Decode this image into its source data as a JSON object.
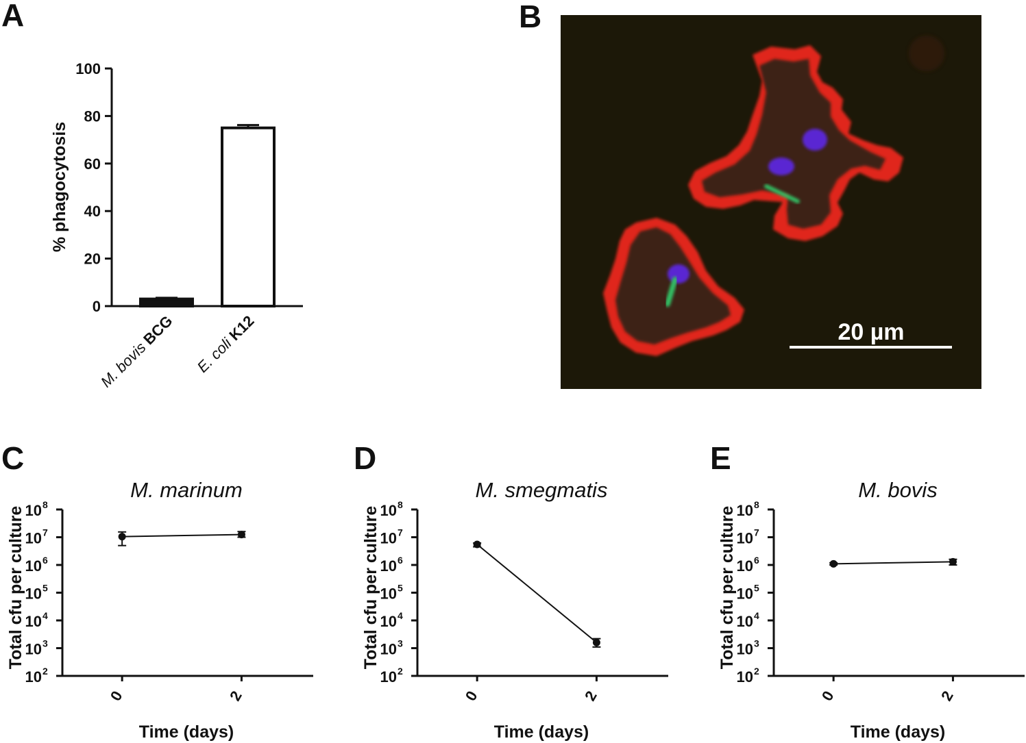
{
  "panels": {
    "A": "A",
    "B": "B",
    "C": "C",
    "D": "D",
    "E": "E"
  },
  "micrograph": {
    "scale_bar_label": "20 µm",
    "colors": {
      "background": "#1c1808",
      "membrane": "#e0281e",
      "cytoplasm": "#3c2414",
      "nucleus": "#5a28d2",
      "bacteria": "#32be64"
    }
  },
  "chart_data": [
    {
      "type": "bar",
      "panel": "A",
      "categories": [
        {
          "italic": "M. bovis",
          "bold": "BCG"
        },
        {
          "italic": "E. coli",
          "bold": "K12"
        }
      ],
      "values": [
        3,
        75
      ],
      "errors": [
        0.5,
        1.2
      ],
      "bar_fill": [
        "#111111",
        "#ffffff"
      ],
      "title": "",
      "xlabel": "",
      "ylabel": "% phagocytosis",
      "ylim": [
        0,
        100
      ],
      "yticks": [
        0,
        20,
        40,
        60,
        80,
        100
      ],
      "grid": false
    },
    {
      "type": "line",
      "panel": "C",
      "title": "M. marinum",
      "xlabel": "Time (days)",
      "ylabel": "Total cfu per culture",
      "yscale": "log",
      "ylim": [
        100,
        100000000
      ],
      "yticks_exp": [
        2,
        3,
        4,
        5,
        6,
        7,
        8
      ],
      "xticks": [
        0,
        2
      ],
      "xlim": [
        -1,
        3.2
      ],
      "x": [
        0,
        2
      ],
      "y": [
        10500000,
        12500000
      ],
      "y_err_low": [
        5000000,
        10000000
      ],
      "y_err_high": [
        15500000,
        16000000
      ],
      "grid": false
    },
    {
      "type": "line",
      "panel": "D",
      "title": "M. smegmatis",
      "xlabel": "Time (days)",
      "ylabel": "Total cfu per culture",
      "yscale": "log",
      "ylim": [
        100,
        100000000
      ],
      "yticks_exp": [
        2,
        3,
        4,
        5,
        6,
        7,
        8
      ],
      "xticks": [
        0,
        2
      ],
      "xlim": [
        -1,
        3.2
      ],
      "x": [
        0,
        2
      ],
      "y": [
        5500000,
        1600
      ],
      "y_err_low": [
        4500000,
        1100
      ],
      "y_err_high": [
        6200000,
        2200
      ],
      "grid": false
    },
    {
      "type": "line",
      "panel": "E",
      "title": "M. bovis",
      "xlabel": "Time (days)",
      "ylabel": "Total cfu per culture",
      "yscale": "log",
      "ylim": [
        100,
        100000000
      ],
      "yticks_exp": [
        2,
        3,
        4,
        5,
        6,
        7,
        8
      ],
      "xticks": [
        0,
        2
      ],
      "xlim": [
        -1,
        3.2
      ],
      "x": [
        0,
        2
      ],
      "y": [
        1100000,
        1300000
      ],
      "y_err_low": [
        1000000,
        1000000
      ],
      "y_err_high": [
        1200000,
        1600000
      ],
      "grid": false
    }
  ]
}
